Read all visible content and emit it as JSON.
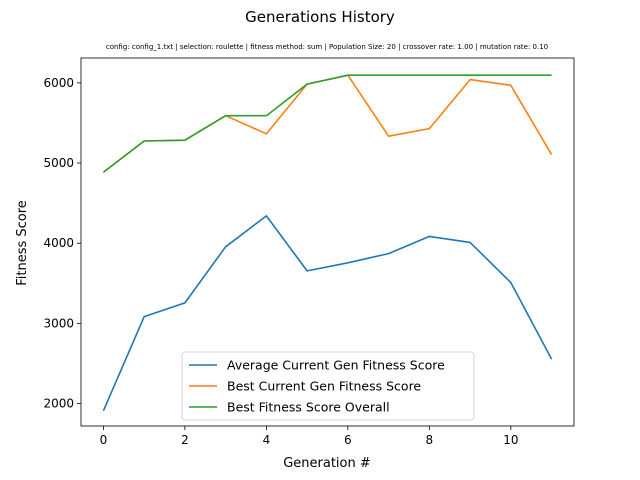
{
  "chart_data": {
    "type": "line",
    "title": "Generations History",
    "subtitle": "config: config_1.txt | selection: roulette | fitness method: sum | Population Size: 20 | crossover rate: 1.00 | mutation rate: 0.10",
    "xlabel": "Generation #",
    "ylabel": "Fitness Score",
    "xlim": [
      -0.55,
      11.55
    ],
    "ylim": [
      1720,
      6310
    ],
    "x_ticks": [
      0,
      2,
      4,
      6,
      8,
      10
    ],
    "y_ticks": [
      2000,
      3000,
      4000,
      5000,
      6000
    ],
    "x": [
      0,
      1,
      2,
      3,
      4,
      5,
      6,
      7,
      8,
      9,
      10,
      11
    ],
    "legend_position": "lower-center",
    "grid": false,
    "series": [
      {
        "name": "Average Current Gen Fitness Score",
        "color": "#1f77b4",
        "values": [
          1910,
          3085,
          3255,
          3955,
          4340,
          3655,
          3755,
          3870,
          4085,
          4010,
          3510,
          2555
        ]
      },
      {
        "name": "Best Current Gen Fitness Score",
        "color": "#ff7f0e",
        "values": [
          4885,
          5275,
          5285,
          5590,
          5365,
          5985,
          6095,
          5335,
          5430,
          6040,
          5970,
          5105
        ]
      },
      {
        "name": "Best Fitness Score Overall",
        "color": "#2ca02c",
        "values": [
          4885,
          5275,
          5285,
          5590,
          5590,
          5985,
          6095,
          6095,
          6095,
          6095,
          6095,
          6095
        ]
      }
    ]
  }
}
